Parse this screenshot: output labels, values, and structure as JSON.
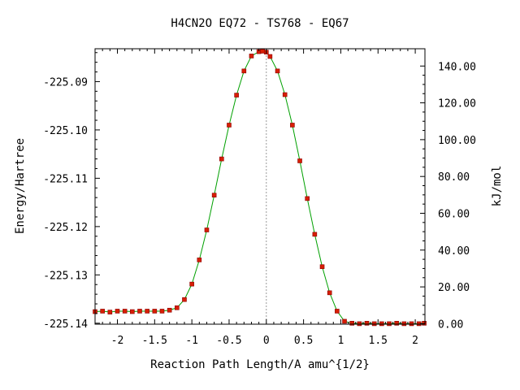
{
  "chart_data": {
    "type": "line",
    "title": "H4CN2O   EQ72 - TS768 - EQ67",
    "xlabel": "Reaction Path Length/A amu^{1/2}",
    "ylabel": "Energy/Hartree",
    "ylabel_right": "kJ/mol",
    "xlim": [
      -2.3,
      2.13
    ],
    "ylim": [
      -225.1402,
      -225.0832
    ],
    "x_ticks": [
      {
        "value": -2.0,
        "label": "-2"
      },
      {
        "value": -1.5,
        "label": "-1.5"
      },
      {
        "value": -1.0,
        "label": "-1"
      },
      {
        "value": -0.5,
        "label": "-0.5"
      },
      {
        "value": 0.0,
        "label": "0"
      },
      {
        "value": 0.5,
        "label": "0.5"
      },
      {
        "value": 1.0,
        "label": "1"
      },
      {
        "value": 1.5,
        "label": "1.5"
      },
      {
        "value": 2.0,
        "label": "2"
      }
    ],
    "y_ticks": [
      {
        "value": -225.09,
        "label": "-225.09"
      },
      {
        "value": -225.1,
        "label": "-225.10"
      },
      {
        "value": -225.11,
        "label": "-225.11"
      },
      {
        "value": -225.12,
        "label": "-225.12"
      },
      {
        "value": -225.13,
        "label": "-225.13"
      },
      {
        "value": -225.14,
        "label": "-225.14"
      }
    ],
    "right_ticks": [
      {
        "value": 0,
        "label": "0.00"
      },
      {
        "value": 20,
        "label": "20.00"
      },
      {
        "value": 40,
        "label": "40.00"
      },
      {
        "value": 60,
        "label": "60.00"
      },
      {
        "value": 80,
        "label": "80.00"
      },
      {
        "value": 100,
        "label": "100.00"
      },
      {
        "value": 120,
        "label": "120.00"
      },
      {
        "value": 140,
        "label": "140.00"
      }
    ],
    "right_axis_zero_energy": -225.1401,
    "hartree_to_kjmol": 2625.5,
    "ts_line_x": 0.0,
    "colors": {
      "line": "#00a000",
      "marker_fill": "#d81e05",
      "marker_edge": "#8b0000",
      "ts_line": "#999999",
      "axis": "#000000"
    },
    "series": [
      {
        "x": [
          -2.3,
          -2.2,
          -2.1,
          -2.0,
          -1.9,
          -1.8,
          -1.7,
          -1.6,
          -1.5,
          -1.4,
          -1.3,
          -1.2,
          -1.1,
          -1.0,
          -0.9,
          -0.8,
          -0.7,
          -0.6,
          -0.5,
          -0.4,
          -0.3,
          -0.2,
          -0.1,
          -0.05,
          0.0,
          0.05,
          0.15,
          0.25,
          0.35,
          0.45,
          0.55,
          0.65,
          0.75,
          0.85,
          0.95,
          1.05,
          1.15,
          1.25,
          1.35,
          1.45,
          1.55,
          1.65,
          1.75,
          1.85,
          1.95,
          2.05,
          2.12
        ],
        "y": [
          -225.1376,
          -225.1375,
          -225.1377,
          -225.1375,
          -225.1375,
          -225.1376,
          -225.1375,
          -225.1375,
          -225.1375,
          -225.1375,
          -225.1373,
          -225.1368,
          -225.1351,
          -225.1319,
          -225.1269,
          -225.1207,
          -225.1135,
          -225.106,
          -225.099,
          -225.0928,
          -225.0878,
          -225.0847,
          -225.0838,
          -225.0837,
          -225.0839,
          -225.0848,
          -225.0878,
          -225.0927,
          -225.099,
          -225.1064,
          -225.1142,
          -225.1216,
          -225.1283,
          -225.1337,
          -225.1375,
          -225.1396,
          -225.14,
          -225.1401,
          -225.14,
          -225.1401,
          -225.1401,
          -225.1401,
          -225.14,
          -225.1401,
          -225.1401,
          -225.1401,
          -225.14
        ]
      }
    ]
  }
}
